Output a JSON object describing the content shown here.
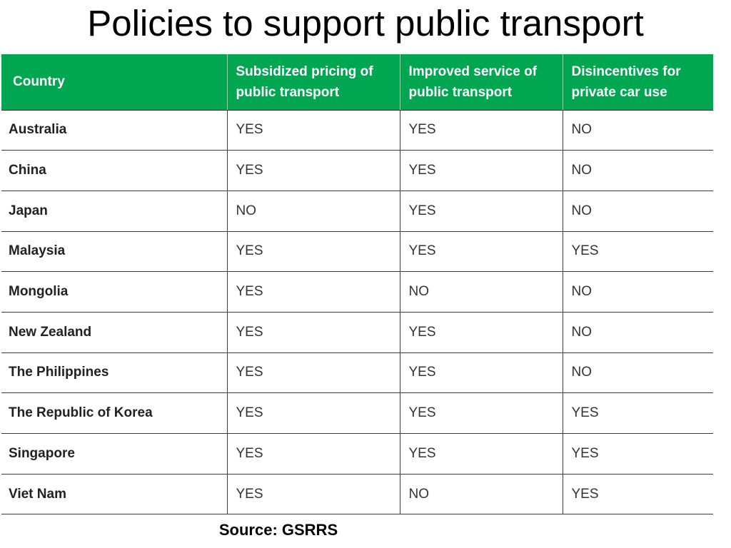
{
  "title": "Policies to support public transport",
  "table": {
    "headers": [
      "Country",
      "Subsidized pricing of public transport",
      "Improved service of public transport",
      "Disincentives for private car use"
    ],
    "rows": [
      [
        "Australia",
        "YES",
        "YES",
        "NO"
      ],
      [
        "China",
        "YES",
        "YES",
        "NO"
      ],
      [
        "Japan",
        "NO",
        "YES",
        "NO"
      ],
      [
        "Malaysia",
        "YES",
        "YES",
        "YES"
      ],
      [
        "Mongolia",
        "YES",
        "NO",
        "NO"
      ],
      [
        "New Zealand",
        "YES",
        "YES",
        "NO"
      ],
      [
        "The Philippines",
        "YES",
        "YES",
        "NO"
      ],
      [
        "The Republic of Korea",
        "YES",
        "YES",
        "YES"
      ],
      [
        "Singapore",
        "YES",
        "YES",
        "YES"
      ],
      [
        "Viet Nam",
        "YES",
        "NO",
        "YES"
      ]
    ]
  },
  "source": "Source: GSRRS",
  "colors": {
    "header_background": "#00a650",
    "header_text": "#ffffff"
  }
}
